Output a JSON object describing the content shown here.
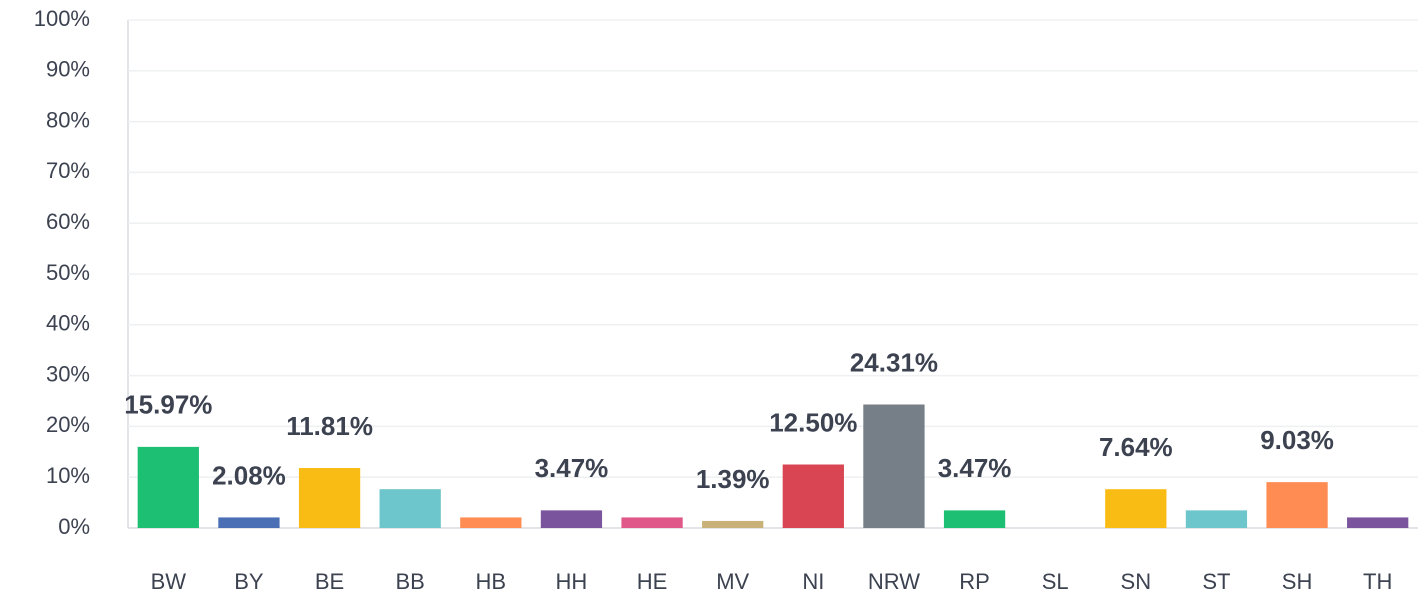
{
  "chart_data": {
    "type": "bar",
    "categories": [
      "BW",
      "BY",
      "BE",
      "BB",
      "HB",
      "HH",
      "HE",
      "MV",
      "NI",
      "NRW",
      "RP",
      "SL",
      "SN",
      "ST",
      "SH",
      "TH"
    ],
    "values": [
      15.97,
      2.08,
      11.81,
      7.64,
      2.08,
      3.47,
      2.08,
      1.39,
      12.5,
      24.31,
      3.47,
      0,
      7.64,
      3.47,
      9.03,
      2.08
    ],
    "value_labels": [
      "15.97%",
      "2.08%",
      "11.81%",
      null,
      null,
      "3.47%",
      null,
      "1.39%",
      "12.50%",
      "24.31%",
      "3.47%",
      null,
      "7.64%",
      null,
      "9.03%",
      null
    ],
    "colors": [
      "#1dbf73",
      "#4a6fb5",
      "#f9bc15",
      "#6cc6cb",
      "#ff8c52",
      "#7a559e",
      "#e0588a",
      "#c9b27a",
      "#d94552",
      "#767e87",
      "#1dbf73",
      "#9aa0a6",
      "#f9bc15",
      "#6cc6cb",
      "#ff8c52",
      "#7a559e"
    ],
    "ylim": [
      0,
      100
    ],
    "yticks": [
      {
        "value": 0,
        "label": "0%"
      },
      {
        "value": 10,
        "label": "10%"
      },
      {
        "value": 20,
        "label": "20%"
      },
      {
        "value": 30,
        "label": "30%"
      },
      {
        "value": 40,
        "label": "40%"
      },
      {
        "value": 50,
        "label": "50%"
      },
      {
        "value": 60,
        "label": "60%"
      },
      {
        "value": 70,
        "label": "70%"
      },
      {
        "value": 80,
        "label": "80%"
      },
      {
        "value": 90,
        "label": "90%"
      },
      {
        "value": 100,
        "label": "100%"
      }
    ],
    "grid": true
  }
}
